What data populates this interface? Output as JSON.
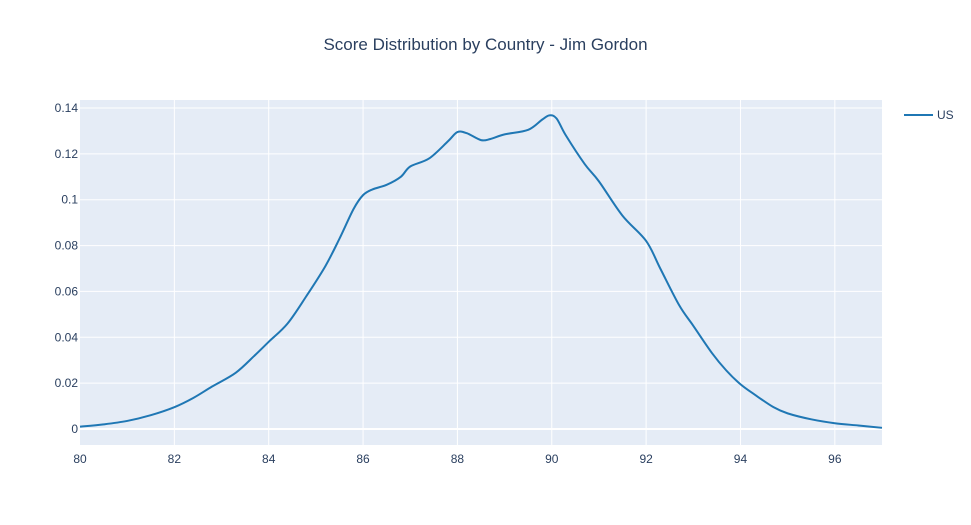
{
  "chart_data": {
    "type": "line",
    "title": "Score Distribution by Country - Jim Gordon",
    "xlabel": "",
    "ylabel": "",
    "xlim": [
      80,
      97
    ],
    "ylim": [
      -0.007,
      0.1435
    ],
    "x_ticks": [
      80,
      82,
      84,
      86,
      88,
      90,
      92,
      94,
      96
    ],
    "x_tick_labels": [
      "80",
      "82",
      "84",
      "86",
      "88",
      "90",
      "92",
      "94",
      "96"
    ],
    "y_ticks": [
      0,
      0.02,
      0.04,
      0.06,
      0.08,
      0.1,
      0.12,
      0.14
    ],
    "y_tick_labels": [
      "0",
      "0.02",
      "0.04",
      "0.06",
      "0.08",
      "0.1",
      "0.12",
      "0.14"
    ],
    "grid": true,
    "legend_position": "top-right",
    "series": [
      {
        "name": "US",
        "color": "#1f77b4",
        "x": [
          80,
          80.5,
          81,
          81.5,
          82,
          82.4,
          82.8,
          83.3,
          83.7,
          84.0,
          84.4,
          84.8,
          85.2,
          85.5,
          85.8,
          86.0,
          86.2,
          86.5,
          86.8,
          87.0,
          87.4,
          87.8,
          88.0,
          88.2,
          88.5,
          88.7,
          89.0,
          89.5,
          89.8,
          89.95,
          90.1,
          90.3,
          90.7,
          91.0,
          91.5,
          92.0,
          92.3,
          92.7,
          93.0,
          93.4,
          93.7,
          94.0,
          94.3,
          94.7,
          95.0,
          95.5,
          96.0,
          96.5,
          97
        ],
        "values": [
          0.001,
          0.002,
          0.0035,
          0.006,
          0.0095,
          0.0135,
          0.0185,
          0.0245,
          0.032,
          0.038,
          0.046,
          0.058,
          0.071,
          0.083,
          0.096,
          0.102,
          0.1045,
          0.1065,
          0.11,
          0.1145,
          0.118,
          0.1255,
          0.1295,
          0.129,
          0.126,
          0.1265,
          0.1285,
          0.1305,
          0.135,
          0.1368,
          0.1355,
          0.128,
          0.1155,
          0.108,
          0.093,
          0.082,
          0.07,
          0.054,
          0.045,
          0.033,
          0.0255,
          0.0195,
          0.015,
          0.0095,
          0.0068,
          0.0042,
          0.0025,
          0.0015,
          0.0005
        ]
      }
    ]
  }
}
